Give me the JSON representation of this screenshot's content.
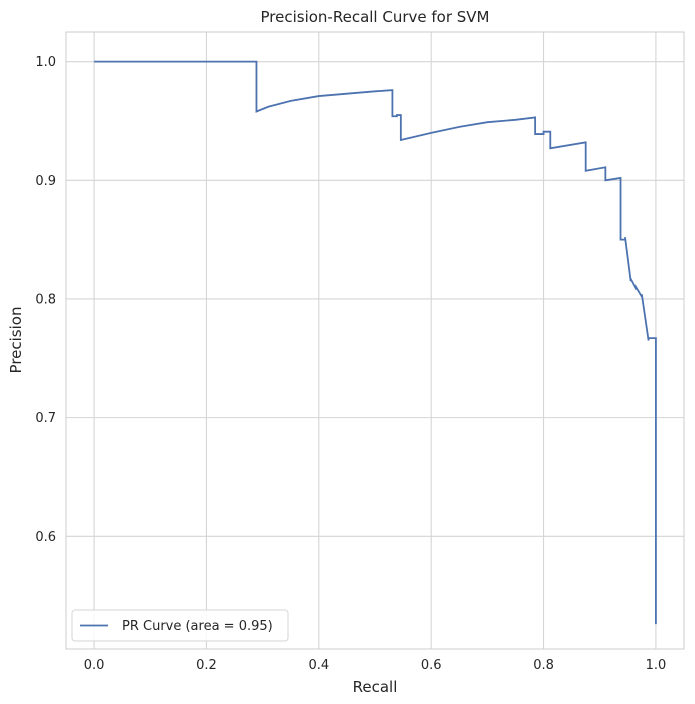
{
  "chart_data": {
    "type": "line",
    "title": "Precision-Recall Curve for SVM",
    "xlabel": "Recall",
    "ylabel": "Precision",
    "xlim": [
      -0.05,
      1.05
    ],
    "ylim": [
      0.505,
      1.025
    ],
    "xticks": [
      0.0,
      0.2,
      0.4,
      0.6,
      0.8,
      1.0
    ],
    "xtick_labels": [
      "0.0",
      "0.2",
      "0.4",
      "0.6",
      "0.8",
      "1.0"
    ],
    "yticks": [
      0.6,
      0.7,
      0.8,
      0.9,
      1.0
    ],
    "ytick_labels": [
      "0.6",
      "0.7",
      "0.8",
      "0.9",
      "1.0"
    ],
    "grid": true,
    "legend_position": "lower-left",
    "series": [
      {
        "name": "PR Curve (area = 0.95)",
        "color": "#4c72b0",
        "x": [
          0.0,
          0.289,
          0.289,
          0.31,
          0.35,
          0.4,
          0.45,
          0.5,
          0.531,
          0.531,
          0.539,
          0.539,
          0.546,
          0.546,
          0.6,
          0.65,
          0.7,
          0.75,
          0.785,
          0.785,
          0.8,
          0.8,
          0.812,
          0.812,
          0.875,
          0.875,
          0.91,
          0.91,
          0.937,
          0.937,
          0.945,
          0.945,
          0.955,
          0.955,
          0.965,
          0.965,
          0.975,
          0.975,
          0.987,
          0.987,
          1.0,
          1.0
        ],
        "y": [
          1.0,
          1.0,
          0.958,
          0.962,
          0.967,
          0.971,
          0.973,
          0.975,
          0.976,
          0.954,
          0.954,
          0.955,
          0.955,
          0.934,
          0.94,
          0.945,
          0.949,
          0.951,
          0.953,
          0.939,
          0.939,
          0.941,
          0.941,
          0.927,
          0.932,
          0.908,
          0.911,
          0.9,
          0.902,
          0.85,
          0.85,
          0.852,
          0.815,
          0.817,
          0.808,
          0.81,
          0.802,
          0.804,
          0.765,
          0.767,
          0.767,
          0.526
        ]
      }
    ]
  }
}
